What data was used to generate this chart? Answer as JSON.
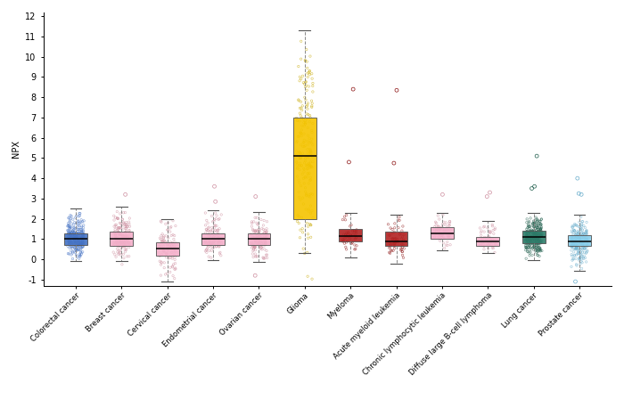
{
  "categories": [
    "Colorectal cancer",
    "Breast cancer",
    "Cervical cancer",
    "Endometrial cancer",
    "Ovarian cancer",
    "Glioma",
    "Myeloma",
    "Acute myeloid leukemia",
    "Chronic lymphocytic leukemia",
    "Diffuse large B-cell lymphoma",
    "Lung cancer",
    "Prostate cancer"
  ],
  "box_colors": [
    "#4472C4",
    "#F4AFCA",
    "#F4AFCA",
    "#F4AFCA",
    "#F4AFCA",
    "#F5C400",
    "#B22222",
    "#B22222",
    "#F4AFCA",
    "#F4AFCA",
    "#2E7D6B",
    "#87CEEB"
  ],
  "dot_colors": [
    "#4472C4",
    "#CE8FA0",
    "#CE8FA0",
    "#CE8FA0",
    "#CE8FA0",
    "#C8A800",
    "#8B1010",
    "#8B1010",
    "#CE8FA0",
    "#CE8FA0",
    "#1E5D4B",
    "#6AAECC"
  ],
  "box_stats": {
    "Colorectal cancer": {
      "q1": 0.7,
      "median": 1.0,
      "q3": 1.3,
      "whislo": -0.1,
      "whishi": 2.5,
      "n": 250
    },
    "Breast cancer": {
      "q1": 0.65,
      "median": 1.0,
      "q3": 1.35,
      "whislo": -0.1,
      "whishi": 2.6,
      "n": 180
    },
    "Cervical cancer": {
      "q1": 0.2,
      "median": 0.55,
      "q3": 0.85,
      "whislo": -1.1,
      "whishi": 2.0,
      "n": 100
    },
    "Endometrial cancer": {
      "q1": 0.7,
      "median": 1.0,
      "q3": 1.3,
      "whislo": -0.05,
      "whishi": 2.4,
      "n": 120
    },
    "Ovarian cancer": {
      "q1": 0.7,
      "median": 1.0,
      "q3": 1.3,
      "whislo": -0.15,
      "whishi": 2.35,
      "n": 150
    },
    "Glioma": {
      "q1": 2.0,
      "median": 5.1,
      "q3": 7.0,
      "whislo": 0.3,
      "whishi": 11.3,
      "n": 220
    },
    "Myeloma": {
      "q1": 0.9,
      "median": 1.15,
      "q3": 1.5,
      "whislo": 0.1,
      "whishi": 2.3,
      "n": 45
    },
    "Acute myeloid leukemia": {
      "q1": 0.65,
      "median": 0.9,
      "q3": 1.35,
      "whislo": -0.2,
      "whishi": 2.2,
      "n": 60
    },
    "Chronic lymphocytic leukemia": {
      "q1": 1.0,
      "median": 1.3,
      "q3": 1.6,
      "whislo": 0.45,
      "whishi": 2.3,
      "n": 70
    },
    "Diffuse large B-cell lymphoma": {
      "q1": 0.65,
      "median": 0.9,
      "q3": 1.1,
      "whislo": 0.3,
      "whishi": 1.9,
      "n": 65
    },
    "Lung cancer": {
      "q1": 0.8,
      "median": 1.1,
      "q3": 1.4,
      "whislo": -0.05,
      "whishi": 2.3,
      "n": 300
    },
    "Prostate cancer": {
      "q1": 0.65,
      "median": 0.9,
      "q3": 1.2,
      "whislo": -0.55,
      "whishi": 2.2,
      "n": 230
    }
  },
  "outliers": {
    "Colorectal cancer": [],
    "Breast cancer": [
      3.2
    ],
    "Cervical cancer": [],
    "Endometrial cancer": [
      3.6,
      2.85
    ],
    "Ovarian cancer": [
      3.1,
      -0.8
    ],
    "Glioma": [],
    "Myeloma": [
      8.4,
      4.8
    ],
    "Acute myeloid leukemia": [
      8.35,
      4.75
    ],
    "Chronic lymphocytic leukemia": [
      3.2
    ],
    "Diffuse large B-cell lymphoma": [
      3.1,
      3.3
    ],
    "Lung cancer": [
      5.1,
      3.6,
      3.5
    ],
    "Prostate cancer": [
      4.0,
      3.2,
      3.25,
      -1.1
    ]
  },
  "ylabel": "NPX",
  "ylim": [
    -1.3,
    12.2
  ],
  "yticks": [
    -1.0,
    0.0,
    1.0,
    2.0,
    3.0,
    4.0,
    5.0,
    6.0,
    7.0,
    8.0,
    9.0,
    10.0,
    11.0,
    12.0
  ],
  "figsize": [
    7.0,
    4.58
  ],
  "dpi": 100,
  "background_color": "#ffffff"
}
